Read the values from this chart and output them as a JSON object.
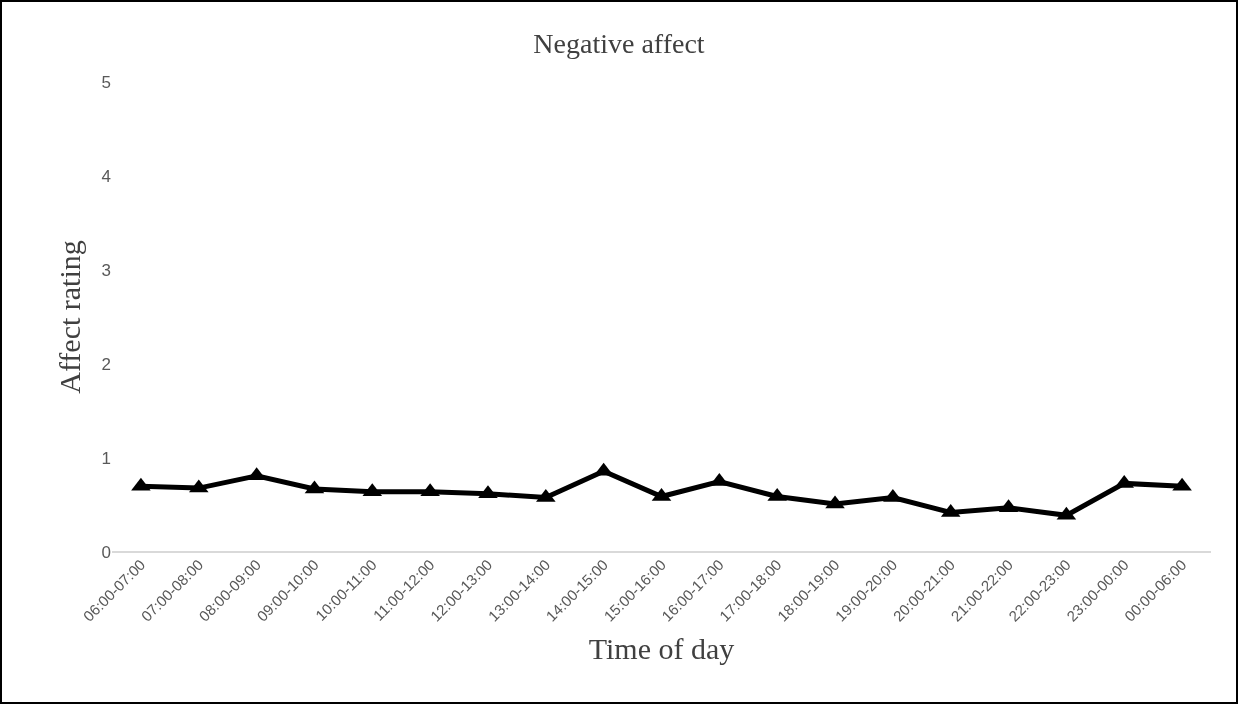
{
  "chart_data": {
    "type": "line",
    "title": "Negative affect",
    "xlabel": "Time of day",
    "ylabel": "Affect rating",
    "categories": [
      "06:00-07:00",
      "07:00-08:00",
      "08:00-09:00",
      "09:00-10:00",
      "10:00-11:00",
      "11:00-12:00",
      "12:00-13:00",
      "13:00-14:00",
      "14:00-15:00",
      "15:00-16:00",
      "16:00-17:00",
      "17:00-18:00",
      "18:00-19:00",
      "19:00-20:00",
      "20:00-21:00",
      "21:00-22:00",
      "22:00-23:00",
      "23:00-00:00",
      "00:00-06:00"
    ],
    "series": [
      {
        "color": "#000000",
        "values": [
          0.7,
          0.68,
          0.81,
          0.67,
          0.64,
          0.64,
          0.62,
          0.58,
          0.86,
          0.59,
          0.75,
          0.59,
          0.51,
          0.58,
          0.42,
          0.47,
          0.39,
          0.73,
          0.7
        ]
      }
    ],
    "ylim": [
      0,
      5
    ],
    "yticks": [
      0,
      1,
      2,
      3,
      4,
      5
    ],
    "grid": false,
    "marker": "triangle",
    "line_style": "solid"
  }
}
